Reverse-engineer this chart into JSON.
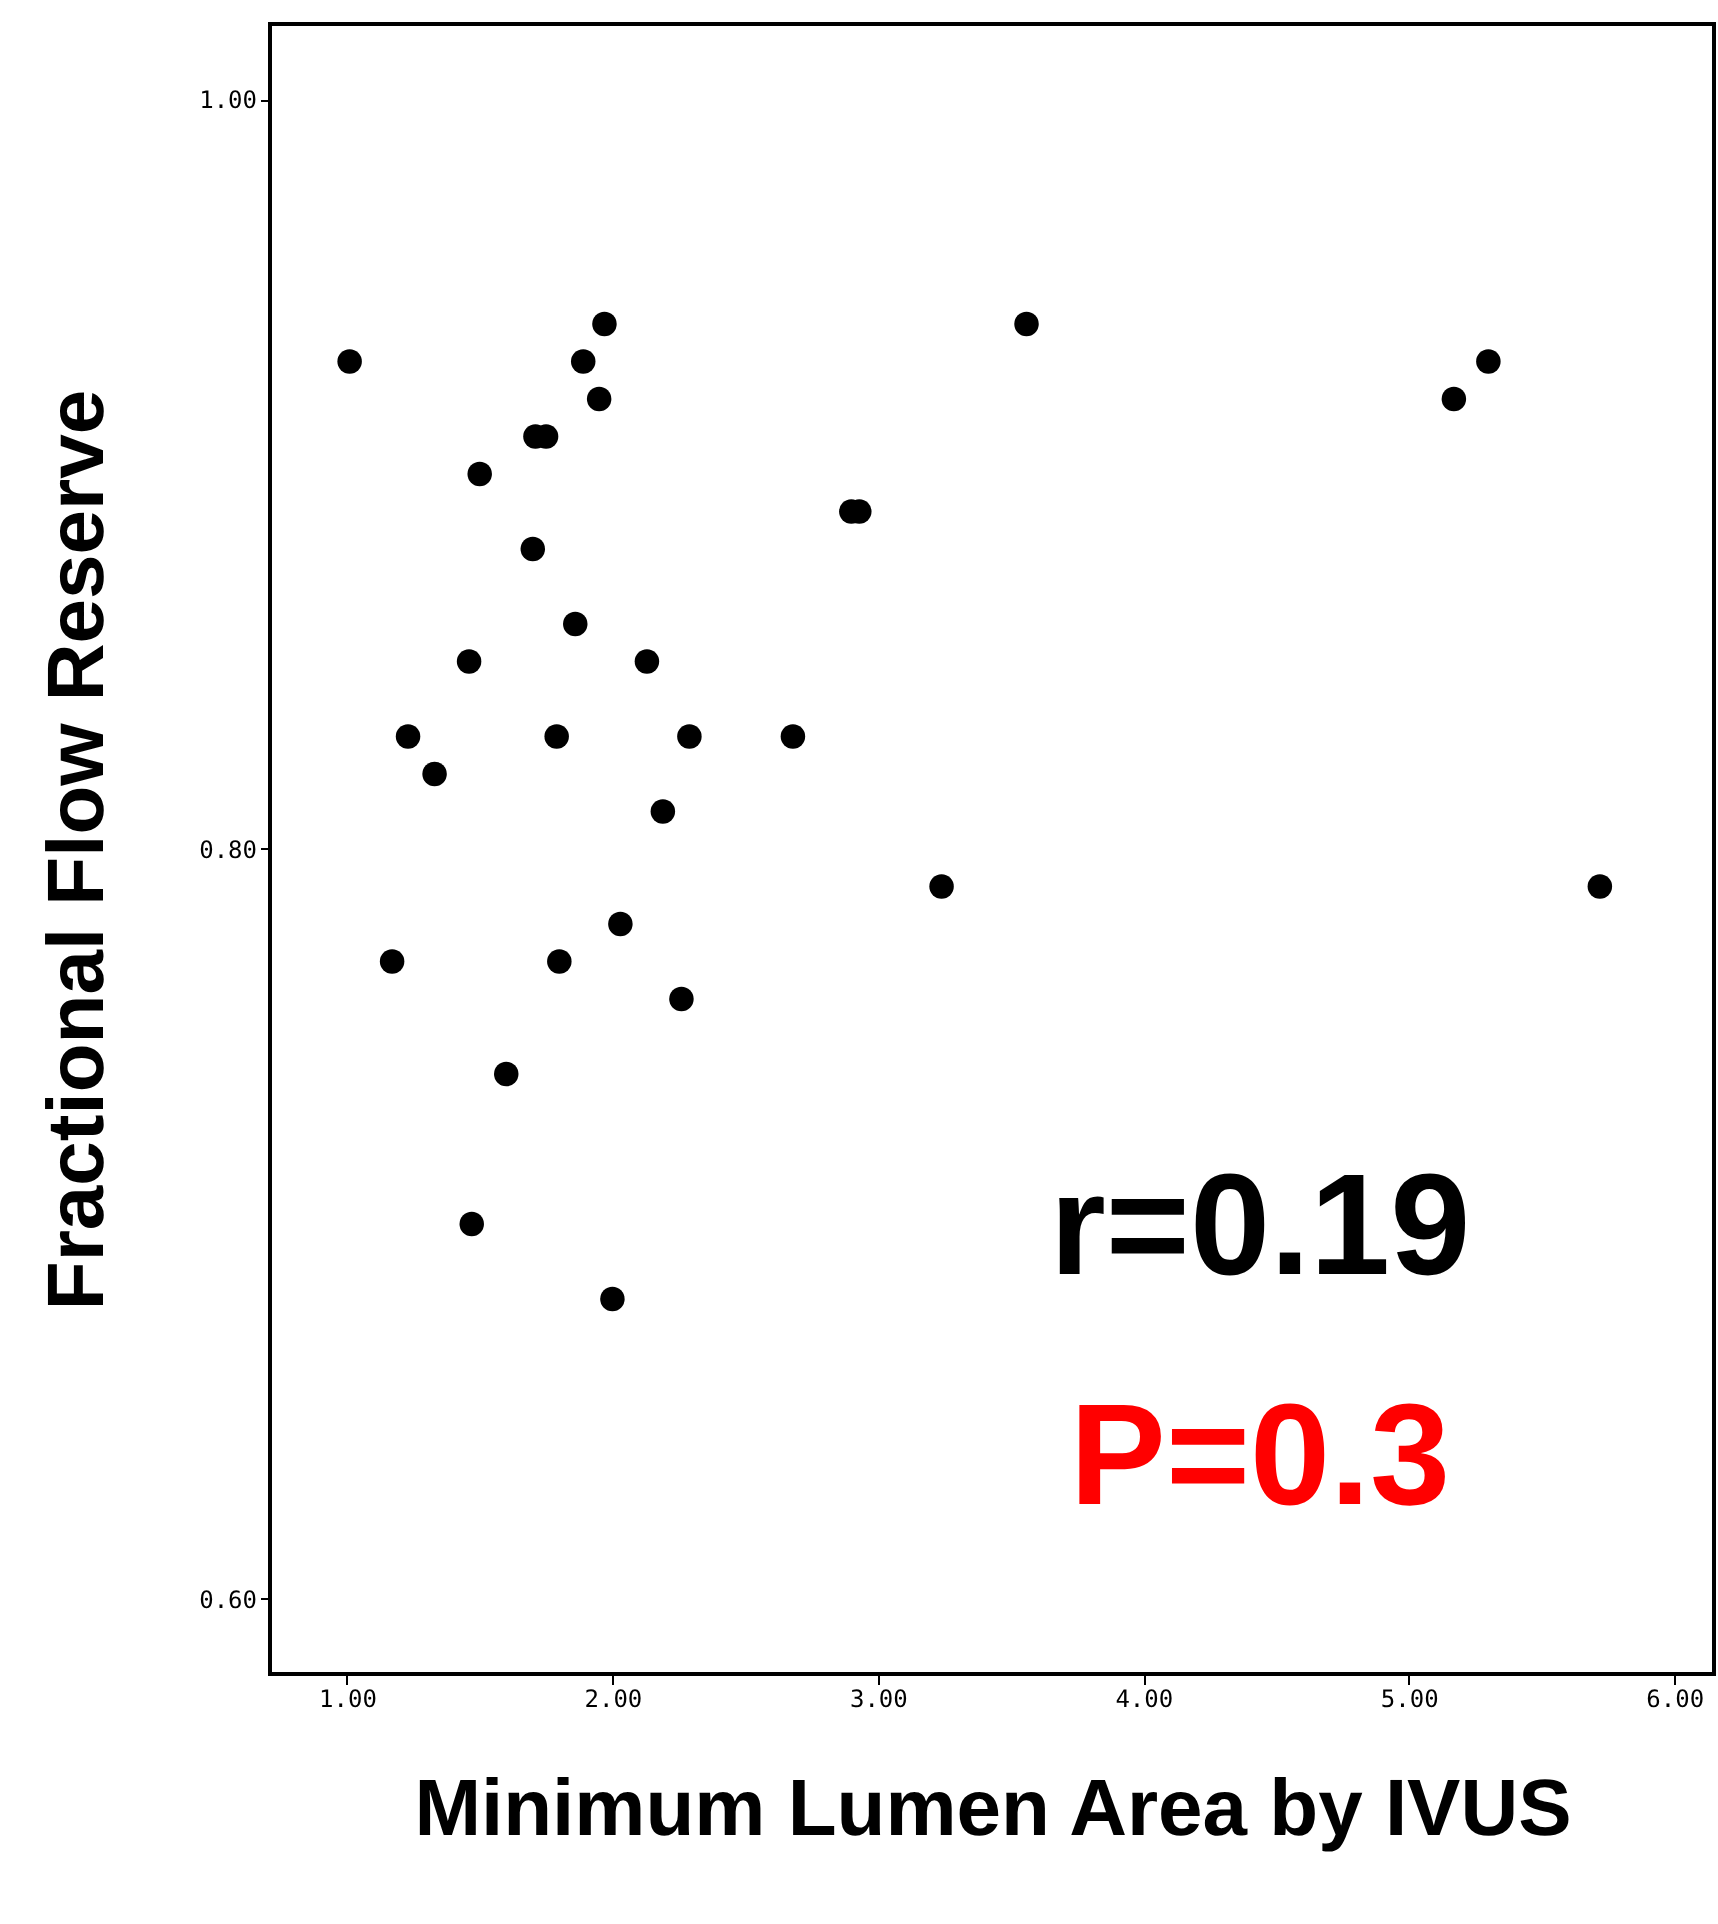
{
  "chart_data": {
    "type": "scatter",
    "xlabel": "Minimum Lumen Area by IVUS",
    "ylabel": "Fractional Flow Reserve",
    "x": [
      1.01,
      1.97,
      1.89,
      1.95,
      1.71,
      1.75,
      1.5,
      1.7,
      1.46,
      1.86,
      2.13,
      1.23,
      1.33,
      1.79,
      2.29,
      2.19,
      2.68,
      2.9,
      2.93,
      3.56,
      3.24,
      5.17,
      5.3,
      5.72,
      1.17,
      1.8,
      2.03,
      2.26,
      1.6,
      1.47,
      2.0
    ],
    "series": [
      {
        "color": "#000000",
        "values": [
          0.93,
          0.94,
          0.93,
          0.92,
          0.91,
          0.91,
          0.9,
          0.88,
          0.85,
          0.86,
          0.85,
          0.83,
          0.82,
          0.83,
          0.83,
          0.81,
          0.83,
          0.89,
          0.89,
          0.94,
          0.79,
          0.92,
          0.93,
          0.79,
          0.77,
          0.77,
          0.78,
          0.76,
          0.74,
          0.7,
          0.68
        ]
      }
    ],
    "xlim": [
      0.71,
      6.15
    ],
    "ylim": [
      0.58,
      1.02
    ],
    "xticks": [
      {
        "value": 1,
        "label": "1.00"
      },
      {
        "value": 2,
        "label": "2.00"
      },
      {
        "value": 3,
        "label": "3.00"
      },
      {
        "value": 4,
        "label": "4.00"
      },
      {
        "value": 5,
        "label": "5.00"
      },
      {
        "value": 6,
        "label": "6.00"
      }
    ],
    "yticks": [
      {
        "value": 0.6,
        "label": "0.60"
      },
      {
        "value": 0.8,
        "label": "0.80"
      },
      {
        "value": 1,
        "label": "1.00"
      }
    ],
    "annotations": [
      "r=0.19",
      "P=0.3"
    ],
    "marker": "circle",
    "grid": false
  }
}
